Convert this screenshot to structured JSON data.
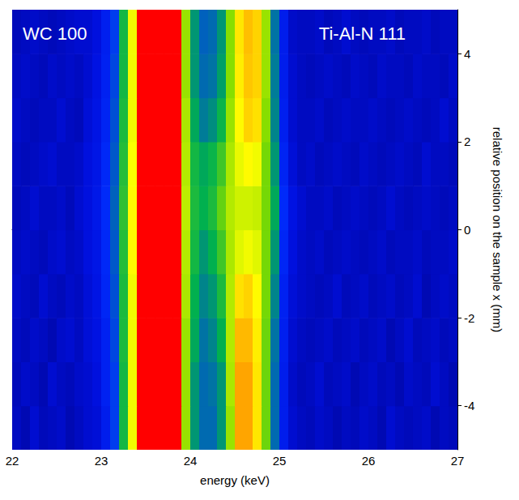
{
  "chart_data": {
    "type": "heatmap",
    "xlabel": "energy (keV)",
    "ylabel": "relative position on the sample x (mm)",
    "annotations": [
      "WC 100",
      "Ti-Al-N 111"
    ],
    "xlim": [
      22,
      27
    ],
    "ylim": [
      -5,
      5
    ],
    "xticks": [
      22,
      23,
      24,
      25,
      26,
      27
    ],
    "yticks": [
      -4,
      -2,
      0,
      2,
      4
    ],
    "grid": false,
    "value_range": [
      0,
      10
    ],
    "x_bins": [
      22.0,
      22.1,
      22.2,
      22.3,
      22.4,
      22.5,
      22.6,
      22.7,
      22.8,
      22.9,
      23.0,
      23.1,
      23.2,
      23.3,
      23.4,
      23.5,
      23.6,
      23.7,
      23.8,
      23.9,
      24.0,
      24.1,
      24.2,
      24.3,
      24.4,
      24.5,
      24.6,
      24.7,
      24.8,
      24.9,
      25.0,
      25.1,
      25.2,
      25.3,
      25.4,
      25.5,
      25.6,
      25.7,
      25.8,
      25.9,
      26.0,
      26.1,
      26.2,
      26.3,
      26.4,
      26.5,
      26.6,
      26.7,
      26.8,
      26.9,
      27.0
    ],
    "y_bins": [
      -5,
      -4,
      -3,
      -2,
      -1,
      0,
      1,
      2,
      3,
      4,
      5
    ],
    "cells": [
      [
        1,
        0.8,
        1.2,
        0.9,
        1,
        1.1,
        0.8,
        1,
        1.2,
        1.3,
        2,
        3,
        4.5,
        7,
        10,
        10,
        10,
        10,
        10,
        6,
        4,
        3.5,
        3.5,
        4,
        6,
        8.5,
        8.5,
        7.5,
        5.5,
        3.5,
        2,
        1.2,
        1,
        0.9,
        1.1,
        1,
        0.8,
        1,
        0.9,
        1.1,
        1,
        0.8,
        1.2,
        1,
        0.9,
        1,
        1.1,
        0.8,
        1,
        0.9
      ],
      [
        0.9,
        1.1,
        1,
        0.8,
        1.2,
        1,
        0.9,
        1.1,
        1.2,
        1.4,
        2.2,
        3,
        4.5,
        7,
        10,
        10,
        10,
        10,
        10,
        6,
        4,
        3.5,
        3.6,
        4,
        6.2,
        8.5,
        8.5,
        7.5,
        5.5,
        3.5,
        2,
        1.1,
        0.9,
        1,
        1.2,
        0.9,
        1,
        1.1,
        0.8,
        1,
        1.1,
        0.9,
        1,
        0.8,
        1.1,
        1,
        0.9,
        1.2,
        1,
        0.8
      ],
      [
        1,
        0.9,
        1.1,
        1,
        0.8,
        1.1,
        1.2,
        1,
        1.3,
        1.5,
        2.2,
        3.1,
        4.6,
        7,
        10,
        10,
        10,
        10,
        10,
        6,
        4.2,
        3.6,
        3.8,
        4.3,
        6.3,
        8.2,
        8.2,
        7.4,
        5.5,
        3.6,
        2.1,
        1.2,
        1,
        0.9,
        1,
        1.1,
        0.9,
        1,
        1.1,
        0.9,
        1,
        1.1,
        0.8,
        1,
        1.2,
        0.9,
        1,
        1.1,
        0.9,
        1
      ],
      [
        1.1,
        1,
        0.9,
        1.2,
        1,
        0.9,
        1.1,
        1,
        1.3,
        1.6,
        2.4,
        3.2,
        4.6,
        7,
        10,
        10,
        10,
        10,
        10,
        6.2,
        4.3,
        3.8,
        4,
        4.6,
        6.3,
        7.6,
        7.8,
        7.2,
        5.6,
        3.8,
        2.2,
        1.3,
        1.1,
        1,
        0.9,
        1,
        1.2,
        0.9,
        1,
        1.1,
        0.9,
        1,
        1.1,
        0.9,
        1,
        1.2,
        0.8,
        1,
        1.1,
        1
      ],
      [
        1,
        1.1,
        1,
        0.9,
        1.1,
        1.2,
        1,
        1.1,
        1.4,
        1.7,
        2.5,
        3.3,
        4.7,
        7.2,
        10,
        10,
        10,
        10,
        10,
        6.3,
        4.5,
        4,
        4.3,
        5,
        6.2,
        6.8,
        7,
        6.8,
        5.6,
        4,
        2.4,
        1.4,
        1.1,
        1,
        1.1,
        0.9,
        1,
        1.1,
        1,
        0.9,
        1,
        1.1,
        0.9,
        1,
        1,
        1.1,
        0.9,
        1,
        1,
        1.1
      ],
      [
        0.9,
        1,
        1.2,
        1,
        1,
        1.1,
        0.9,
        1.2,
        1.4,
        1.8,
        2.6,
        3.4,
        4.8,
        7.2,
        10,
        10,
        10,
        10,
        10,
        6.4,
        4.6,
        4.3,
        4.6,
        5.4,
        6.3,
        6.6,
        6.6,
        6.5,
        5.6,
        4.2,
        2.6,
        1.5,
        1.2,
        1,
        1,
        1.1,
        0.9,
        1,
        1.1,
        1,
        0.9,
        1,
        1.2,
        1,
        0.9,
        1,
        1.1,
        1,
        0.9,
        1
      ],
      [
        1,
        0.9,
        1,
        1.1,
        1.2,
        1,
        1,
        1.1,
        1.4,
        1.7,
        2.5,
        3.3,
        4.7,
        7.1,
        10,
        10,
        10,
        10,
        10,
        6.3,
        4.5,
        4.2,
        4.4,
        5,
        6.2,
        6.9,
        7.2,
        7,
        5.6,
        4,
        2.3,
        1.3,
        1,
        1.1,
        0.9,
        1,
        1.1,
        1,
        0.9,
        1.1,
        1,
        0.9,
        1,
        1.1,
        1,
        0.9,
        1.2,
        1,
        1,
        0.9
      ],
      [
        1.1,
        1,
        0.9,
        1,
        1,
        1.2,
        1,
        0.9,
        1.3,
        1.6,
        2.3,
        3.2,
        4.6,
        7,
        10,
        10,
        10,
        10,
        10,
        6.2,
        4.2,
        3.7,
        3.9,
        4.4,
        6,
        7.2,
        7.8,
        7.6,
        5.8,
        3.8,
        2.1,
        1.2,
        1,
        1,
        1.1,
        0.9,
        1,
        1.1,
        1,
        1,
        1.1,
        1,
        0.9,
        1,
        1.1,
        1,
        0.9,
        1,
        1.2,
        1
      ],
      [
        1,
        1.1,
        1,
        0.9,
        1.1,
        1,
        1.1,
        1,
        1.2,
        1.5,
        2.2,
        3.1,
        4.5,
        7,
        10,
        10,
        10,
        10,
        10,
        6,
        4,
        3.5,
        3.6,
        4.1,
        5.8,
        7.4,
        8,
        7.8,
        6,
        3.7,
        2,
        1.2,
        1,
        0.9,
        1,
        1.1,
        1,
        0.9,
        1.1,
        1,
        0.9,
        1.1,
        1,
        1,
        0.9,
        1.1,
        1,
        1,
        0.9,
        1.1
      ],
      [
        0.9,
        1,
        1.1,
        1,
        0.9,
        1,
        1.1,
        1.2,
        1.2,
        1.4,
        2.1,
        3,
        4.5,
        7,
        10,
        10,
        10,
        10,
        10,
        6,
        4,
        3.4,
        3.5,
        4,
        5.8,
        7.5,
        8.1,
        7.8,
        6,
        3.6,
        2,
        1.1,
        1,
        1,
        1.1,
        0.9,
        1,
        1.2,
        1,
        0.9,
        1,
        1,
        1.1,
        0.9,
        1,
        1,
        1.1,
        0.9,
        1,
        1
      ]
    ]
  }
}
